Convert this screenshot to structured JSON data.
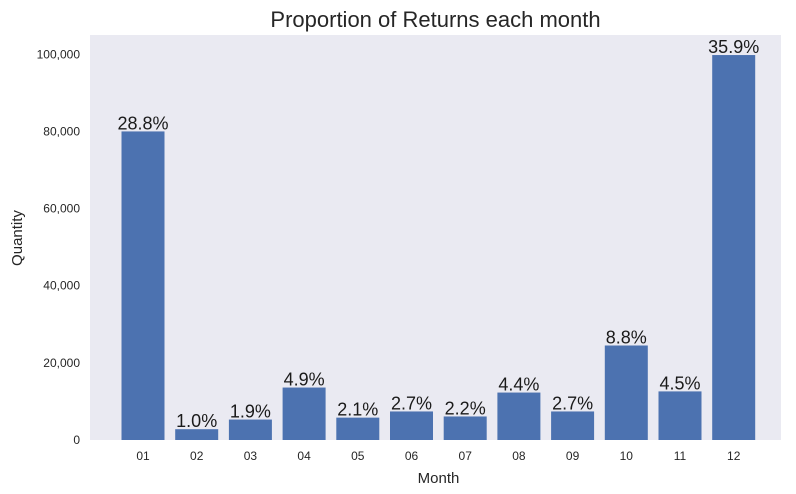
{
  "chart_data": {
    "type": "bar",
    "title": "Proportion of Returns each month",
    "xlabel": "Month",
    "ylabel": "Quantity",
    "categories": [
      "01",
      "02",
      "03",
      "04",
      "05",
      "06",
      "07",
      "08",
      "09",
      "10",
      "11",
      "12"
    ],
    "values": [
      80000,
      2800,
      5300,
      13600,
      5800,
      7400,
      6100,
      12300,
      7400,
      24500,
      12600,
      99800
    ],
    "data_labels": [
      "28.8%",
      "1.0%",
      "1.9%",
      "4.9%",
      "2.1%",
      "2.7%",
      "2.2%",
      "4.4%",
      "2.7%",
      "8.8%",
      "4.5%",
      "35.9%"
    ],
    "yticks": [
      0,
      20000,
      40000,
      60000,
      80000,
      100000
    ],
    "ytick_labels": [
      "0",
      "20,000",
      "40,000",
      "60,000",
      "80,000",
      "100,000"
    ],
    "ylim": [
      0,
      105000
    ],
    "grid": false,
    "bar_color": "#4c72b0",
    "background_color": "#eaeaf2"
  }
}
